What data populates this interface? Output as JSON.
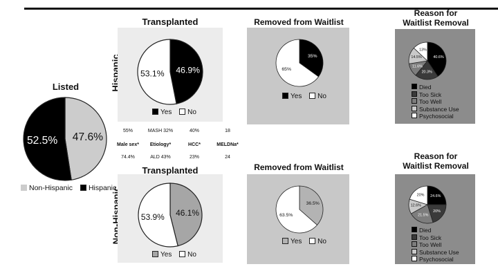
{
  "listed": {
    "title": "Listed",
    "legend": [
      {
        "label": "Non-Hispanic",
        "color": "#cccccc"
      },
      {
        "label": "Hispanic",
        "color": "#000000"
      }
    ]
  },
  "row_labels": {
    "top": "Hispanic",
    "bottom": "Non-Hispanic"
  },
  "stats": {
    "top_values": [
      "55%",
      "MASH 32%",
      "40%",
      "18"
    ],
    "labels": [
      "Male sex*",
      "Etiology*",
      "HCC*",
      "MELDNa*"
    ],
    "bottom_values": [
      "74.4%",
      "ALD 43%",
      "23%",
      "24"
    ]
  },
  "titles": {
    "transplanted_top": "Transplanted",
    "removed_top": "Removed from Waitlist",
    "reason_top_line1": "Reason for",
    "reason_top_line2": "Waitlist Removal",
    "transplanted_bottom": "Transplanted",
    "removed_bottom": "Removed from Waitlist",
    "reason_bottom_line1": "Reason for",
    "reason_bottom_line2": "Waitlist Removal"
  },
  "legends": {
    "yes_no": {
      "yes": "Yes",
      "no": "No"
    },
    "reasons": [
      "Died",
      "Too Sick",
      "Too Well",
      "Substance Use",
      "Psychosocial"
    ]
  },
  "colors": {
    "panel_light": "#ececec",
    "panel_mid": "#c8c8c8",
    "panel_dark": "#8c8c8c"
  },
  "chart_data": [
    {
      "id": "listed",
      "type": "pie",
      "title": "Listed",
      "slices": [
        {
          "label": "Non-Hispanic",
          "value": 47.6,
          "text": "47.6%",
          "color": "#cccccc",
          "text_color": "#111111"
        },
        {
          "label": "Hispanic",
          "value": 52.5,
          "text": "52.5%",
          "color": "#000000",
          "text_color": "#ffffff"
        }
      ]
    },
    {
      "id": "transplanted_hispanic",
      "type": "pie",
      "title": "Transplanted",
      "slices": [
        {
          "label": "Yes",
          "value": 46.9,
          "text": "46.9%",
          "color": "#000000",
          "text_color": "#ffffff"
        },
        {
          "label": "No",
          "value": 53.1,
          "text": "53.1%",
          "color": "#ffffff",
          "text_color": "#111111"
        }
      ]
    },
    {
      "id": "removed_hispanic",
      "type": "pie",
      "title": "Removed from Waitlist",
      "slices": [
        {
          "label": "Yes",
          "value": 35,
          "text": "35%",
          "color": "#000000",
          "text_color": "#ffffff"
        },
        {
          "label": "No",
          "value": 65,
          "text": "65%",
          "color": "#ffffff",
          "text_color": "#111111"
        }
      ]
    },
    {
      "id": "reason_hispanic",
      "type": "pie",
      "title": "Reason for Waitlist Removal",
      "slices": [
        {
          "label": "Died",
          "value": 40.6,
          "text": "40.6%",
          "color": "#000000",
          "text_color": "#ffffff"
        },
        {
          "label": "Too Sick",
          "value": 20.3,
          "text": "20.3%",
          "color": "#3a3a3a",
          "text_color": "#ffffff"
        },
        {
          "label": "Too Well",
          "value": 11.6,
          "text": "11.6%",
          "color": "#7d7d7d",
          "text_color": "#ffffff"
        },
        {
          "label": "Substance Use",
          "value": 14.5,
          "text": "14.5%",
          "color": "#c9c9c9",
          "text_color": "#111111"
        },
        {
          "label": "Psychosocial",
          "value": 13,
          "text": "13%",
          "color": "#ffffff",
          "text_color": "#111111"
        }
      ]
    },
    {
      "id": "transplanted_non_hispanic",
      "type": "pie",
      "title": "Transplanted",
      "slices": [
        {
          "label": "Yes",
          "value": 46.1,
          "text": "46.1%",
          "color": "#a6a6a6",
          "text_color": "#111111"
        },
        {
          "label": "No",
          "value": 53.9,
          "text": "53.9%",
          "color": "#ffffff",
          "text_color": "#111111"
        }
      ]
    },
    {
      "id": "removed_non_hispanic",
      "type": "pie",
      "title": "Removed from Waitlist",
      "slices": [
        {
          "label": "Yes",
          "value": 36.5,
          "text": "36.5%",
          "color": "#b3b3b3",
          "text_color": "#111111"
        },
        {
          "label": "No",
          "value": 63.5,
          "text": "63.5%",
          "color": "#ffffff",
          "text_color": "#111111"
        }
      ]
    },
    {
      "id": "reason_non_hispanic",
      "type": "pie",
      "title": "Reason for Waitlist Removal",
      "slices": [
        {
          "label": "Died",
          "value": 24.6,
          "text": "24.6%",
          "color": "#000000",
          "text_color": "#ffffff"
        },
        {
          "label": "Too Sick",
          "value": 20,
          "text": "20%",
          "color": "#3a3a3a",
          "text_color": "#ffffff"
        },
        {
          "label": "Too Well",
          "value": 21.5,
          "text": "21.5%",
          "color": "#7d7d7d",
          "text_color": "#ffffff"
        },
        {
          "label": "Substance Use",
          "value": 12.6,
          "text": "12.6%",
          "color": "#c9c9c9",
          "text_color": "#111111"
        },
        {
          "label": "Psychosocial",
          "value": 20,
          "text": "20%",
          "color": "#ffffff",
          "text_color": "#111111"
        }
      ]
    }
  ]
}
